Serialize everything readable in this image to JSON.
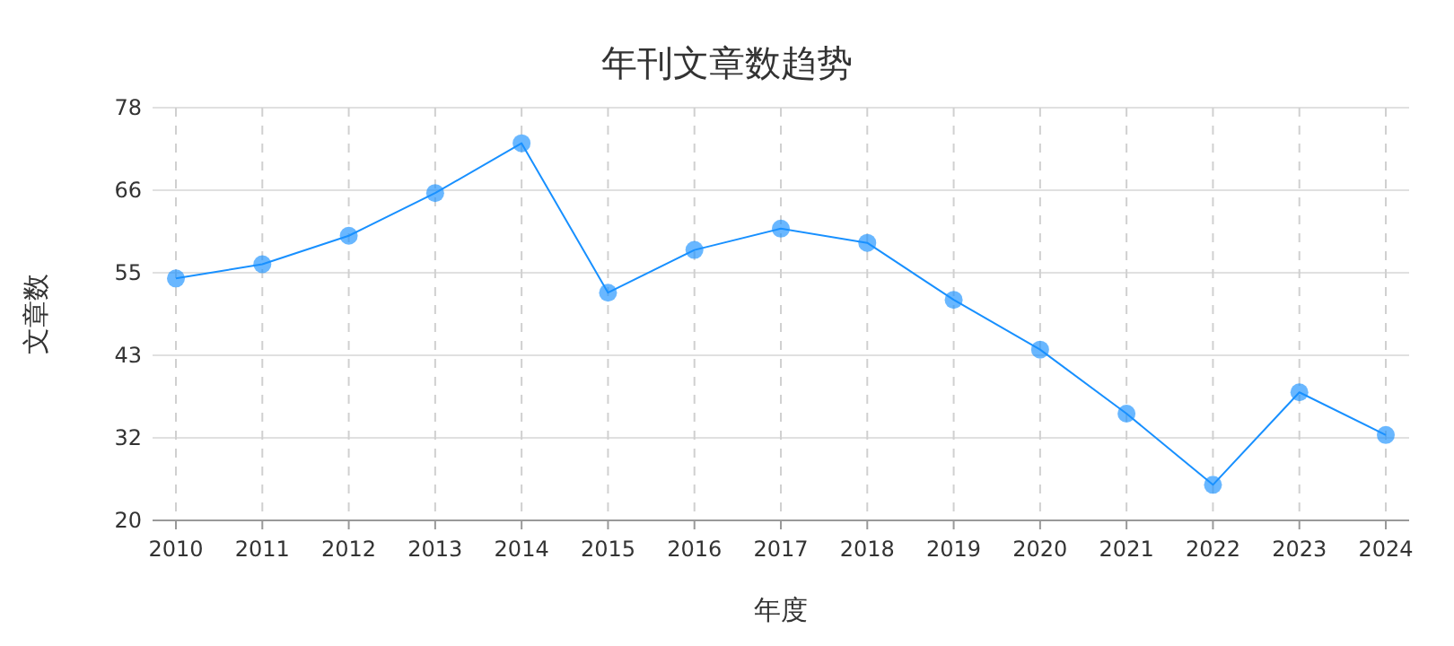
{
  "chart_data": {
    "type": "line",
    "title": "年刊文章数趋势",
    "xlabel": "年度",
    "ylabel": "文章数",
    "categories": [
      "2010",
      "2011",
      "2012",
      "2013",
      "2014",
      "2015",
      "2016",
      "2017",
      "2018",
      "2019",
      "2020",
      "2021",
      "2022",
      "2023",
      "2024"
    ],
    "series": [
      {
        "color": "#1890ff",
        "values": [
          54,
          56,
          60,
          66,
          73,
          52,
          58,
          61,
          59,
          51,
          44,
          35,
          25,
          38,
          32
        ]
      }
    ],
    "ylim": [
      20,
      78
    ],
    "yticks": [
      20,
      {
        "value": 31.6,
        "label": "32"
      },
      {
        "value": 43.2,
        "label": "43"
      },
      {
        "value": 54.8,
        "label": "55"
      },
      {
        "value": 66.4,
        "label": "66"
      },
      78
    ],
    "grid": true,
    "marker": "circle",
    "line_style": "solid"
  }
}
